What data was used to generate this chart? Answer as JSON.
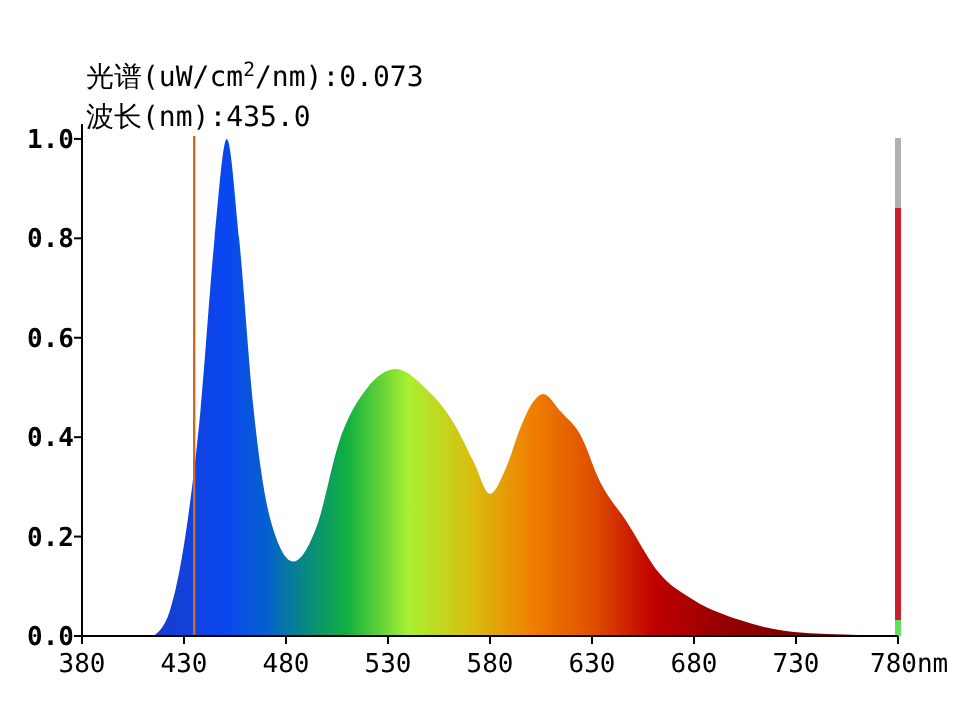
{
  "chart_data": {
    "type": "area",
    "title": "光谱(uW/cm$^{2}$/nm):0.073",
    "subtitle": "波长(nm):435.0",
    "x": [
      415,
      423,
      431,
      438,
      445,
      451,
      457,
      464,
      472,
      483.6,
      495,
      506,
      520,
      534,
      548,
      562,
      572,
      580,
      588,
      595,
      601,
      606,
      615,
      624,
      634,
      647,
      663,
      680,
      702.5,
      729,
      761,
      780
    ],
    "series": [
      {
        "values": [
          0,
          0.05,
          0.21,
          0.45,
          0.8,
          1.0,
          0.8,
          0.46,
          0.24,
          0.15,
          0.22,
          0.39,
          0.5,
          0.537,
          0.5,
          0.43,
          0.35,
          0.286,
          0.34,
          0.42,
          0.47,
          0.487,
          0.45,
          0.407,
          0.31,
          0.23,
          0.126,
          0.072,
          0.032,
          0.008,
          0.002,
          0
        ]
      }
    ],
    "xlim": [
      380,
      780
    ],
    "xticks": [
      380,
      430,
      480,
      530,
      580,
      630,
      680,
      730,
      {
        "value": 780,
        "label": "780nm"
      }
    ],
    "ylim": [
      0,
      1.03
    ],
    "yticks": [
      {
        "value": 0,
        "label": "0.0"
      },
      {
        "value": 0.2,
        "label": "0.2"
      },
      {
        "value": 0.4,
        "label": "0.4"
      },
      {
        "value": 0.6,
        "label": "0.6"
      },
      {
        "value": 0.8,
        "label": "0.8"
      },
      {
        "value": 1,
        "label": "1.0"
      }
    ],
    "ref_lines": [
      {
        "axis": "x",
        "value": 435,
        "color": "#d2691e"
      }
    ],
    "grid": false
  }
}
